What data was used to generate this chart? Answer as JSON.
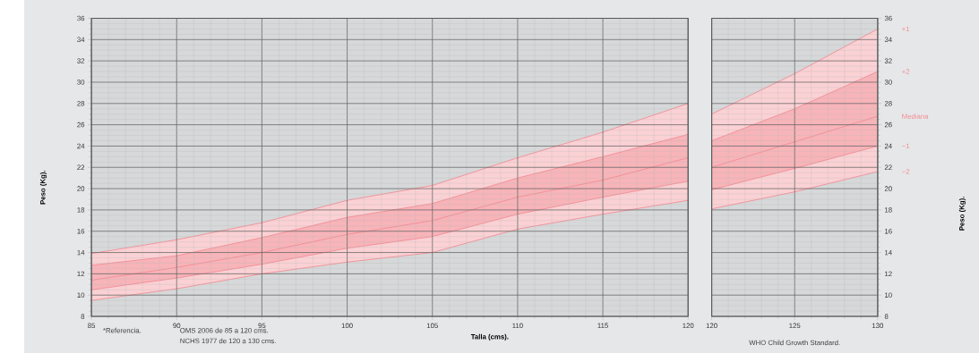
{
  "chart_data": [
    {
      "type": "line",
      "xlabel": "Talla (cms).",
      "ylabel": "Peso (Kg).",
      "xlim": [
        85,
        120
      ],
      "xticks": [
        85,
        90,
        95,
        100,
        105,
        110,
        115,
        120
      ],
      "ylim": [
        8,
        36
      ],
      "yticks": [
        8,
        10,
        12,
        14,
        16,
        18,
        20,
        22,
        24,
        26,
        28,
        30,
        32,
        34,
        36
      ],
      "grid": true,
      "annotations": [
        "*Referencia.",
        "OMS    2006 de   85 a 120 cms.",
        "NCHS  1977 de 120 a 130 cms."
      ],
      "x": [
        85,
        90,
        95,
        100,
        105,
        110,
        115,
        120
      ],
      "series": [
        {
          "color": "#f28b93",
          "values": [
            13.9,
            15.2,
            16.8,
            18.9,
            20.3,
            22.9,
            25.3,
            28.0
          ],
          "upper": [
            13.9,
            15.2,
            16.8,
            18.9,
            20.3,
            22.9,
            25.3,
            28.0
          ],
          "lower": [
            9.5,
            10.6,
            12.0,
            13.1,
            14.0,
            16.2,
            17.6,
            18.9
          ]
        },
        {
          "color": "#f28b93",
          "values": [
            12.8,
            13.7,
            15.4,
            17.3,
            18.6,
            21.0,
            23.0,
            25.1
          ]
        },
        {
          "color": "#f28b93",
          "values": [
            11.4,
            12.6,
            14.0,
            15.7,
            17.0,
            19.2,
            20.8,
            22.9
          ],
          "upper": [
            12.8,
            13.7,
            15.4,
            17.3,
            18.6,
            21.0,
            23.0,
            25.1
          ],
          "lower": [
            10.5,
            11.6,
            12.9,
            14.4,
            15.5,
            17.6,
            19.2,
            20.7
          ]
        },
        {
          "color": "#f28b93",
          "values": [
            10.5,
            11.6,
            12.9,
            14.4,
            15.5,
            17.6,
            19.2,
            20.7
          ]
        },
        {
          "color": "#f28b93",
          "values": [
            9.5,
            10.6,
            12.0,
            13.1,
            14.0,
            16.2,
            17.6,
            18.9
          ]
        }
      ]
    },
    {
      "type": "line",
      "ylabel": "Peso (Kg).",
      "xlim": [
        120,
        130
      ],
      "xticks": [
        120,
        125,
        130
      ],
      "ylim": [
        8,
        36
      ],
      "yticks": [
        8,
        10,
        12,
        14,
        16,
        18,
        20,
        22,
        24,
        26,
        28,
        30,
        32,
        34,
        36
      ],
      "grid": true,
      "annotations": [
        "WHO Child Growth Standard."
      ],
      "x": [
        120,
        125,
        130
      ],
      "series": [
        {
          "name": "+1",
          "color": "#f28b93",
          "values": [
            27.0,
            30.8,
            35.0
          ],
          "upper": [
            27.0,
            30.8,
            35.0
          ],
          "lower": [
            18.1,
            19.7,
            21.6
          ]
        },
        {
          "name": "+2",
          "color": "#f28b93",
          "values": [
            24.5,
            27.5,
            31.0
          ]
        },
        {
          "name": "Mediana",
          "color": "#f28b93",
          "values": [
            22.0,
            24.4,
            26.8
          ],
          "upper": [
            24.5,
            27.5,
            31.0
          ],
          "lower": [
            19.9,
            21.9,
            24.0
          ]
        },
        {
          "name": "−1",
          "color": "#f28b93",
          "values": [
            19.9,
            21.9,
            24.0
          ]
        },
        {
          "name": "−2",
          "color": "#f28b93",
          "values": [
            18.1,
            19.7,
            21.6
          ]
        }
      ]
    }
  ]
}
